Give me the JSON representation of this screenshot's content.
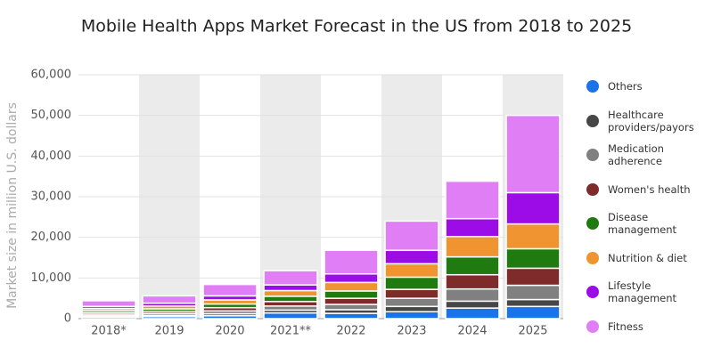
{
  "chart_data": {
    "type": "stacked_bar",
    "title": "Mobile Health Apps Market Forecast in the US from 2018 to 2025",
    "y_label": "Market size in million U.S. dollars",
    "categories": [
      "2018*",
      "2019",
      "2020",
      "2021**",
      "2022",
      "2023",
      "2024",
      "2025"
    ],
    "series": [
      {
        "name": "Others",
        "color": "#1a73e8",
        "values": [
          400,
          500,
          700,
          1400,
          1300,
          1700,
          2600,
          3000
        ]
      },
      {
        "name": "Healthcare providers/payors",
        "color": "#474747",
        "values": [
          300,
          300,
          500,
          700,
          900,
          1300,
          1700,
          1700
        ]
      },
      {
        "name": "Medication adherence",
        "color": "#808080",
        "values": [
          400,
          500,
          700,
          1000,
          1300,
          2000,
          3000,
          3500
        ]
      },
      {
        "name": "Women's health",
        "color": "#7f2b2b",
        "values": [
          400,
          500,
          800,
          1100,
          1500,
          2200,
          3500,
          4200
        ]
      },
      {
        "name": "Disease management",
        "color": "#1f7a10",
        "values": [
          500,
          600,
          900,
          1300,
          1800,
          3000,
          4400,
          4800
        ]
      },
      {
        "name": "Nutrition & diet",
        "color": "#ef9430",
        "values": [
          500,
          700,
          1000,
          1400,
          2100,
          3300,
          5000,
          6100
        ]
      },
      {
        "name": "Lifestyle management",
        "color": "#9b0ce6",
        "values": [
          500,
          700,
          1000,
          1400,
          2100,
          3300,
          4400,
          7700
        ]
      },
      {
        "name": "Fitness",
        "color": "#e07ef5",
        "values": [
          1400,
          1800,
          2800,
          3500,
          5800,
          7200,
          9200,
          19000
        ]
      }
    ],
    "ylim": [
      0,
      60000
    ],
    "yticks": [
      0,
      {
        "value": 10000,
        "label": "10,000"
      },
      {
        "value": 20000,
        "label": "20,000"
      },
      {
        "value": 30000,
        "label": "30,000"
      },
      {
        "value": 40000,
        "label": "40,000"
      },
      {
        "value": 50000,
        "label": "50,000"
      },
      {
        "value": 60000,
        "label": "60,000"
      }
    ],
    "grid": true
  }
}
